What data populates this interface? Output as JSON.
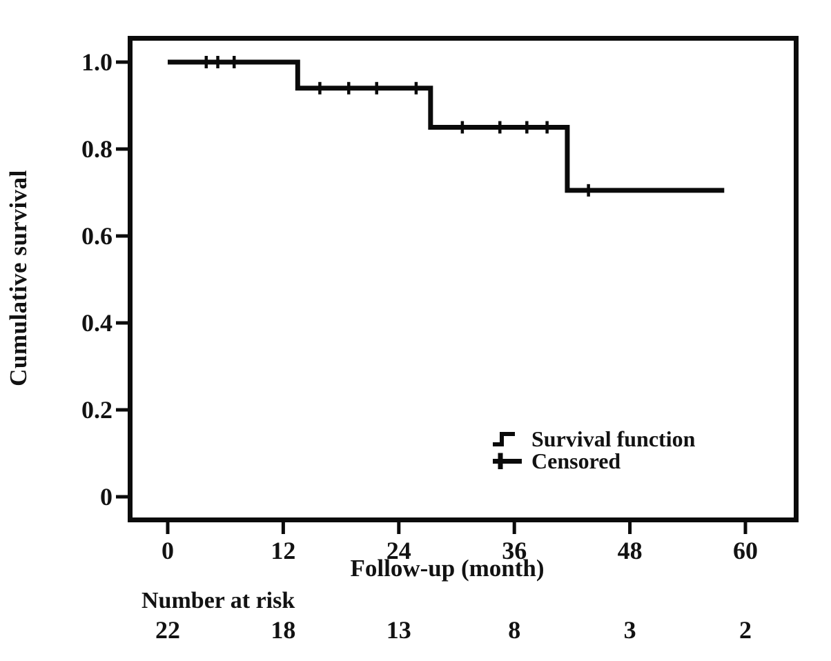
{
  "chart_data": {
    "type": "line",
    "subtype": "kaplan-meier-step",
    "title": "",
    "xlabel": "Follow-up (month)",
    "ylabel": "Cumulative survival",
    "xlim": [
      0,
      65
    ],
    "ylim": [
      0,
      1.0
    ],
    "x_ticks": [
      0,
      12,
      24,
      36,
      48,
      60
    ],
    "y_ticks": [
      0,
      0.2,
      0.4,
      0.6,
      0.8,
      1.0
    ],
    "y_tick_labels": [
      "0",
      "0.2",
      "0.4",
      "0.6",
      "0.8",
      "1.0"
    ],
    "grid": false,
    "colors": {
      "line": "#0a0a0a",
      "text": "#121212",
      "background": "#ffffff",
      "frame": "#0b0b0b"
    },
    "series": [
      {
        "name": "Survival function",
        "steps": [
          {
            "from_month": 0,
            "to_month": 13.5,
            "survival": 1.0
          },
          {
            "from_month": 13.5,
            "to_month": 27.3,
            "survival": 0.94
          },
          {
            "from_month": 27.3,
            "to_month": 41.5,
            "survival": 0.85
          },
          {
            "from_month": 41.5,
            "to_month": 57.8,
            "survival": 0.705
          }
        ],
        "censored": [
          {
            "month": 4.0,
            "survival": 1.0
          },
          {
            "month": 5.2,
            "survival": 1.0
          },
          {
            "month": 6.9,
            "survival": 1.0
          },
          {
            "month": 15.8,
            "survival": 0.94
          },
          {
            "month": 18.8,
            "survival": 0.94
          },
          {
            "month": 21.7,
            "survival": 0.94
          },
          {
            "month": 25.8,
            "survival": 0.94
          },
          {
            "month": 30.6,
            "survival": 0.85
          },
          {
            "month": 34.5,
            "survival": 0.85
          },
          {
            "month": 37.3,
            "survival": 0.85
          },
          {
            "month": 39.4,
            "survival": 0.85
          },
          {
            "month": 43.7,
            "survival": 0.705
          }
        ]
      }
    ],
    "legend": {
      "position": "inside-bottom-right",
      "entries": [
        "Survival function",
        "Censored"
      ]
    },
    "number_at_risk": {
      "label": "Number at risk",
      "months": [
        0,
        12,
        24,
        36,
        48,
        60
      ],
      "values": [
        "22",
        "18",
        "13",
        "8",
        "3",
        "2"
      ]
    }
  }
}
